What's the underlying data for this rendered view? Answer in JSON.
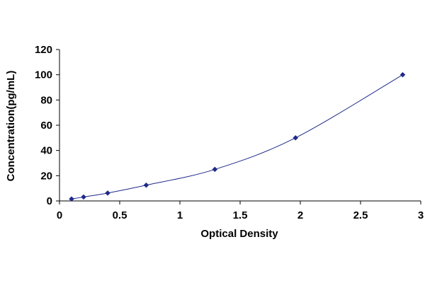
{
  "chart_data": {
    "type": "scatter",
    "title": "",
    "xlabel": "Optical Density",
    "ylabel": "Concentration(pg/mL)",
    "xlim": [
      0,
      3
    ],
    "ylim": [
      0,
      120
    ],
    "x_ticks": [
      {
        "value": 0,
        "label": "0"
      },
      {
        "value": 0.5,
        "label": "0.5"
      },
      {
        "value": 1,
        "label": "1"
      },
      {
        "value": 1.5,
        "label": "1.5"
      },
      {
        "value": 2,
        "label": "2"
      },
      {
        "value": 2.5,
        "label": "2.5"
      },
      {
        "value": 3,
        "label": "3"
      }
    ],
    "y_ticks": [
      {
        "value": 0,
        "label": "0"
      },
      {
        "value": 20,
        "label": "20"
      },
      {
        "value": 40,
        "label": "40"
      },
      {
        "value": 60,
        "label": "60"
      },
      {
        "value": 80,
        "label": "80"
      },
      {
        "value": 100,
        "label": "100"
      },
      {
        "value": 120,
        "label": "120"
      }
    ],
    "grid": false,
    "legend": "none",
    "series": [
      {
        "marker": "diamond",
        "color": "#1f2a8a",
        "line_color": "#1f2a8a",
        "line": "smooth",
        "x": [
          0.1,
          0.2,
          0.4,
          0.72,
          1.29,
          1.96,
          2.85
        ],
        "y": [
          1.56,
          3.12,
          6.25,
          12.5,
          25,
          50,
          100
        ]
      }
    ]
  }
}
